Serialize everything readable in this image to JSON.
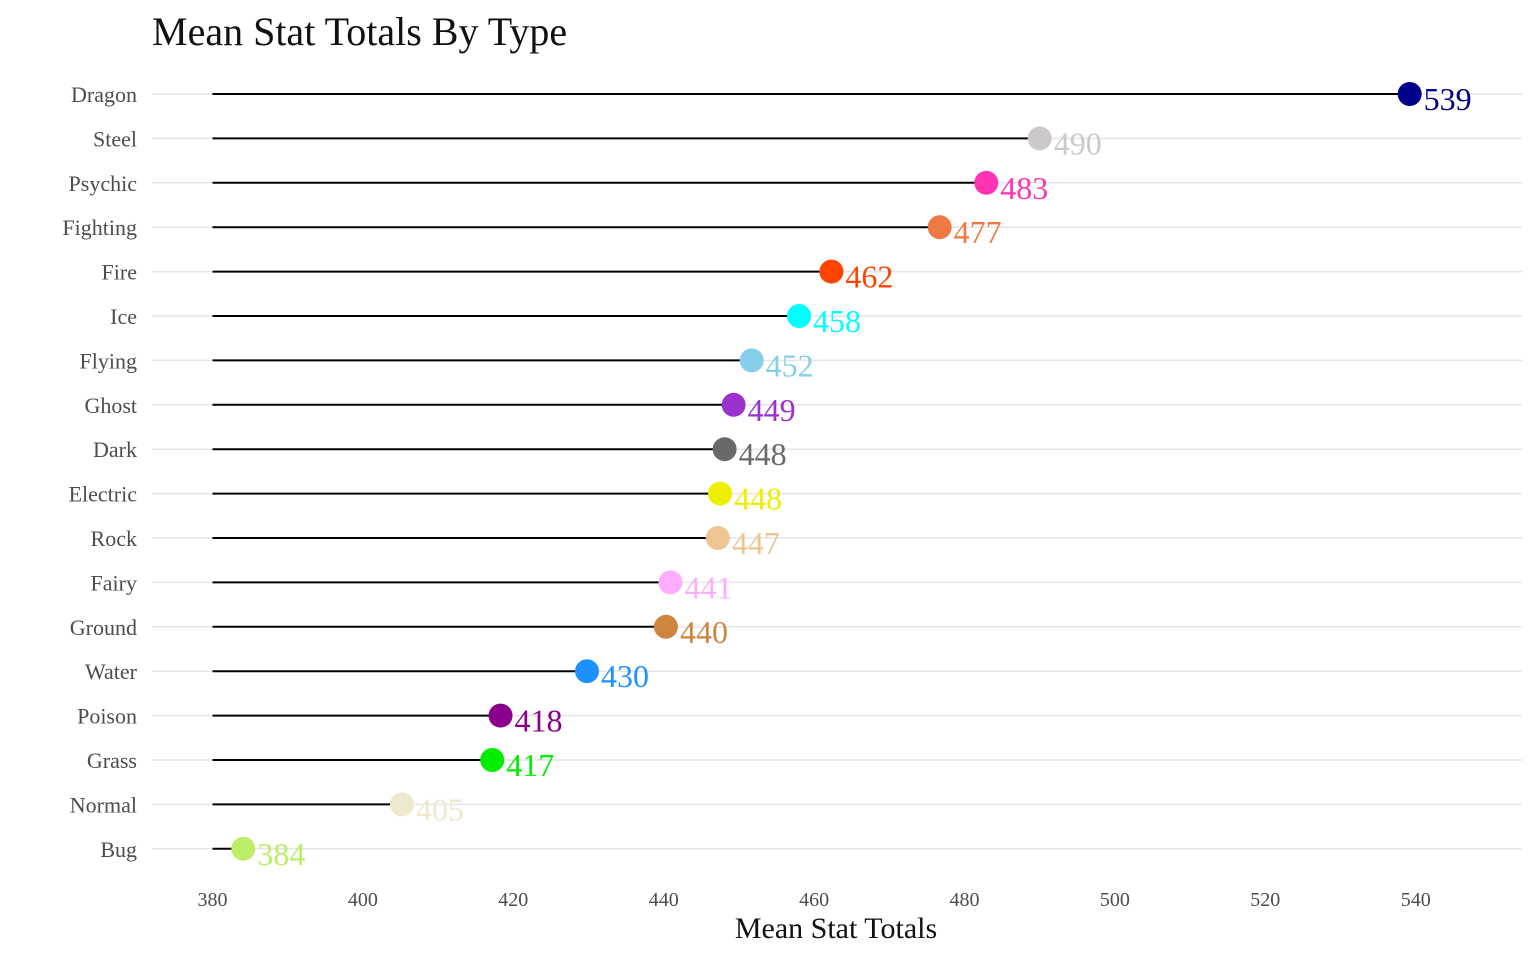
{
  "chart_data": {
    "type": "lollipop",
    "title": "Mean Stat Totals By Type",
    "xlabel": "Mean Stat Totals",
    "ylabel": "",
    "xlim": [
      372,
      552
    ],
    "baseline": 380,
    "x_ticks": [
      380,
      400,
      420,
      440,
      460,
      480,
      500,
      520,
      540
    ],
    "grid": "horizontal",
    "legend": "none",
    "categories": [
      "Dragon",
      "Steel",
      "Psychic",
      "Fighting",
      "Fire",
      "Ice",
      "Flying",
      "Ghost",
      "Dark",
      "Electric",
      "Rock",
      "Fairy",
      "Ground",
      "Water",
      "Poison",
      "Grass",
      "Normal",
      "Bug"
    ],
    "values": [
      539.2,
      490.0,
      482.9,
      476.7,
      462.3,
      458.0,
      451.7,
      449.3,
      448.1,
      447.5,
      447.2,
      440.9,
      440.3,
      429.8,
      418.3,
      417.2,
      405.2,
      384.1
    ],
    "labels": [
      "539",
      "490",
      "483",
      "477",
      "462",
      "458",
      "452",
      "449",
      "448",
      "448",
      "447",
      "441",
      "440",
      "430",
      "418",
      "417",
      "405",
      "384"
    ],
    "colors": [
      "#00008B",
      "#CDC9C9",
      "#FF34B3",
      "#EE7942",
      "#FF4500",
      "#00FFFF",
      "#87CEEB",
      "#9A32CD",
      "#696969",
      "#EEEE00",
      "#EEC591",
      "#FFAEFF",
      "#CD853F",
      "#1E90FF",
      "#8B008B",
      "#00EE00",
      "#EEE8CD",
      "#BCEE68"
    ]
  }
}
